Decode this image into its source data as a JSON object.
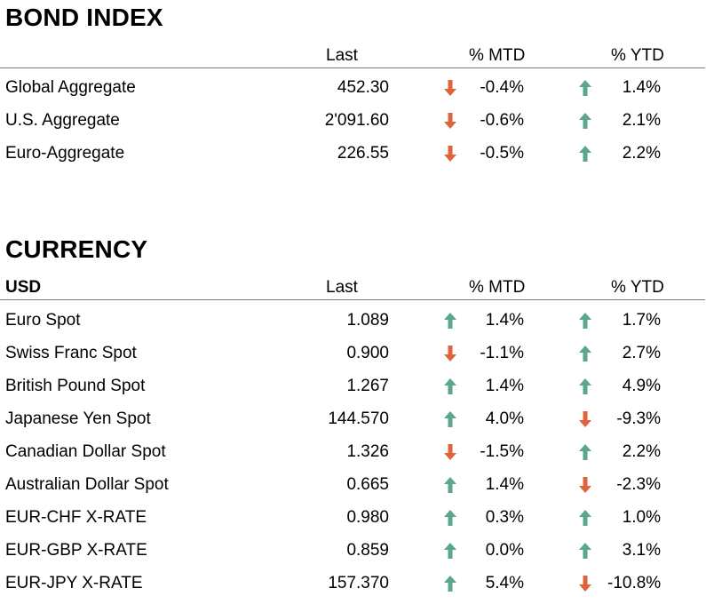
{
  "colors": {
    "up": "#5aa690",
    "down": "#e0633f",
    "rule": "#7f7f7f"
  },
  "bond": {
    "title": "BOND INDEX",
    "headers": {
      "name": "",
      "last": "Last",
      "mtd": "% MTD",
      "ytd": "% YTD"
    },
    "rows": [
      {
        "name": "Global Aggregate",
        "last": "452.30",
        "mtd": "-0.4%",
        "mtd_dir": "down",
        "ytd": "1.4%",
        "ytd_dir": "up"
      },
      {
        "name": "U.S. Aggregate",
        "last": "2'091.60",
        "mtd": "-0.6%",
        "mtd_dir": "down",
        "ytd": "2.1%",
        "ytd_dir": "up"
      },
      {
        "name": "Euro-Aggregate",
        "last": "226.55",
        "mtd": "-0.5%",
        "mtd_dir": "down",
        "ytd": "2.2%",
        "ytd_dir": "up"
      }
    ]
  },
  "currency": {
    "title": "CURRENCY",
    "headers": {
      "name": "USD",
      "last": "Last",
      "mtd": "% MTD",
      "ytd": "% YTD"
    },
    "rows": [
      {
        "name": "Euro Spot",
        "last": "1.089",
        "mtd": "1.4%",
        "mtd_dir": "up",
        "ytd": "1.7%",
        "ytd_dir": "up"
      },
      {
        "name": "Swiss Franc Spot",
        "last": "0.900",
        "mtd": "-1.1%",
        "mtd_dir": "down",
        "ytd": "2.7%",
        "ytd_dir": "up"
      },
      {
        "name": "British Pound Spot",
        "last": "1.267",
        "mtd": "1.4%",
        "mtd_dir": "up",
        "ytd": "4.9%",
        "ytd_dir": "up"
      },
      {
        "name": "Japanese Yen Spot",
        "last": "144.570",
        "mtd": "4.0%",
        "mtd_dir": "up",
        "ytd": "-9.3%",
        "ytd_dir": "down"
      },
      {
        "name": "Canadian Dollar Spot",
        "last": "1.326",
        "mtd": "-1.5%",
        "mtd_dir": "down",
        "ytd": "2.2%",
        "ytd_dir": "up"
      },
      {
        "name": "Australian Dollar Spot",
        "last": "0.665",
        "mtd": "1.4%",
        "mtd_dir": "up",
        "ytd": "-2.3%",
        "ytd_dir": "down"
      },
      {
        "name": "EUR-CHF X-RATE",
        "last": "0.980",
        "mtd": "0.3%",
        "mtd_dir": "up",
        "ytd": "1.0%",
        "ytd_dir": "up"
      },
      {
        "name": "EUR-GBP X-RATE",
        "last": "0.859",
        "mtd": "0.0%",
        "mtd_dir": "up",
        "ytd": "3.1%",
        "ytd_dir": "up"
      },
      {
        "name": "EUR-JPY X-RATE",
        "last": "157.370",
        "mtd": "5.4%",
        "mtd_dir": "up",
        "ytd": "-10.8%",
        "ytd_dir": "down"
      }
    ]
  }
}
